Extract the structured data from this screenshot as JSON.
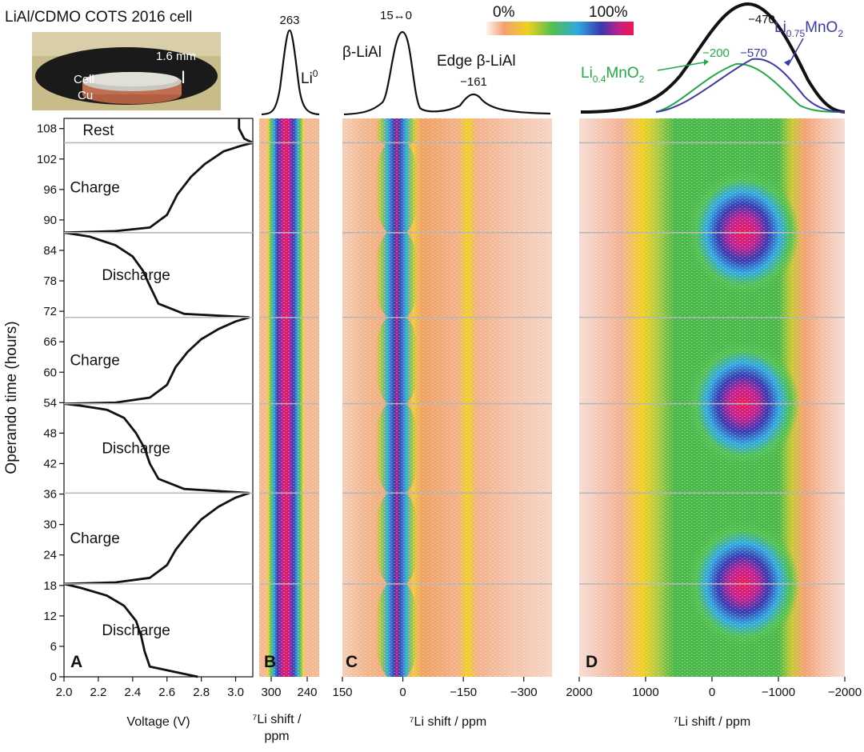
{
  "title": "LiAl/CDMO COTS 2016 cell",
  "photo": {
    "thickness": "1.6 mm",
    "label_cell": "Cell",
    "label_cu": "Cu"
  },
  "colorbar": {
    "min_label": "0%",
    "max_label": "100%"
  },
  "panels": {
    "A": {
      "letter": "A",
      "xlabel": "Voltage (V)",
      "ylabel": "Operando time (hours)"
    },
    "B": {
      "letter": "B",
      "xlabel_line1": "⁷Li shift /",
      "xlabel_line2": "ppm",
      "peak_label": "263",
      "species": "Li",
      "species_sup": "0"
    },
    "C": {
      "letter": "C",
      "xlabel": "⁷Li shift / ppm",
      "peak_label": "15↔0",
      "species": "β-LiAl",
      "edge_label": "Edge β-LiAl",
      "edge_value": "−161"
    },
    "D": {
      "letter": "D",
      "xlabel": "⁷Li shift / ppm",
      "total_peak": "−470",
      "green_peak": "−200",
      "blue_peak": "−570",
      "blue_species": "Li",
      "blue_sub": "0.75",
      "blue_tail": "MnO",
      "blue_tail_sub": "2",
      "green_species": "Li",
      "green_sub": "0.4",
      "green_tail": "MnO",
      "green_tail_sub": "2"
    }
  },
  "colors": {
    "high": "#e8185f",
    "blue": "#3a3aa8",
    "green": "#22a844",
    "line": "#111111",
    "grid": "#b8b8b8"
  },
  "chart_data": [
    {
      "type": "line",
      "panel": "A",
      "title": "",
      "xlabel": "Voltage (V)",
      "ylabel": "Operando time (hours)",
      "xlim": [
        2.0,
        3.1
      ],
      "ylim": [
        0,
        110
      ],
      "x_ticks": [
        "2.0",
        "2.2",
        "2.4",
        "2.6",
        "2.8",
        "3.0"
      ],
      "y_ticks": [
        "0",
        "6",
        "12",
        "18",
        "24",
        "30",
        "36",
        "42",
        "48",
        "54",
        "60",
        "66",
        "72",
        "78",
        "84",
        "90",
        "96",
        "102",
        "108"
      ],
      "segments": [
        {
          "label": "Discharge",
          "points": [
            [
              2.78,
              0
            ],
            [
              2.5,
              2
            ],
            [
              2.47,
              5
            ],
            [
              2.45,
              8
            ],
            [
              2.42,
              11
            ],
            [
              2.35,
              14
            ],
            [
              2.25,
              16
            ],
            [
              2.1,
              17.5
            ],
            [
              2.0,
              18.3
            ]
          ]
        },
        {
          "label": "Charge",
          "points": [
            [
              2.0,
              18.3
            ],
            [
              2.3,
              18.6
            ],
            [
              2.5,
              19.5
            ],
            [
              2.6,
              22
            ],
            [
              2.65,
              25
            ],
            [
              2.72,
              28
            ],
            [
              2.8,
              31
            ],
            [
              2.9,
              33.5
            ],
            [
              3.0,
              35.3
            ],
            [
              3.08,
              36.2
            ]
          ]
        },
        {
          "label": "Discharge",
          "points": [
            [
              3.08,
              36.2
            ],
            [
              2.7,
              37
            ],
            [
              2.55,
              39
            ],
            [
              2.5,
              42
            ],
            [
              2.47,
              45
            ],
            [
              2.42,
              48
            ],
            [
              2.35,
              51
            ],
            [
              2.25,
              52.6
            ],
            [
              2.1,
              53.4
            ],
            [
              2.0,
              53.8
            ]
          ]
        },
        {
          "label": "Charge",
          "points": [
            [
              2.0,
              53.8
            ],
            [
              2.3,
              54
            ],
            [
              2.5,
              55
            ],
            [
              2.6,
              57.5
            ],
            [
              2.65,
              61
            ],
            [
              2.72,
              64
            ],
            [
              2.8,
              66.5
            ],
            [
              2.9,
              68.5
            ],
            [
              3.0,
              70
            ],
            [
              3.08,
              70.8
            ]
          ]
        },
        {
          "label": "Discharge",
          "points": [
            [
              3.08,
              70.8
            ],
            [
              2.7,
              71.5
            ],
            [
              2.55,
              73.5
            ],
            [
              2.5,
              77
            ],
            [
              2.46,
              80
            ],
            [
              2.4,
              82.8
            ],
            [
              2.3,
              85
            ],
            [
              2.15,
              86.7
            ],
            [
              2.0,
              87.5
            ]
          ]
        },
        {
          "label": "Charge",
          "points": [
            [
              2.0,
              87.5
            ],
            [
              2.3,
              87.8
            ],
            [
              2.5,
              88.5
            ],
            [
              2.6,
              91
            ],
            [
              2.66,
              95
            ],
            [
              2.74,
              98.5
            ],
            [
              2.82,
              101
            ],
            [
              2.93,
              103.5
            ],
            [
              3.03,
              104.6
            ],
            [
              3.1,
              105.2
            ]
          ]
        },
        {
          "label": "Rest",
          "points": [
            [
              3.1,
              105.2
            ],
            [
              3.05,
              106
            ],
            [
              3.02,
              108
            ],
            [
              3.02,
              110
            ]
          ]
        }
      ],
      "regions": [
        {
          "label": "Discharge",
          "t0": 0,
          "t1": 18.3
        },
        {
          "label": "Charge",
          "t0": 18.3,
          "t1": 36.2
        },
        {
          "label": "Discharge",
          "t0": 36.2,
          "t1": 53.8
        },
        {
          "label": "Charge",
          "t0": 53.8,
          "t1": 70.8
        },
        {
          "label": "Discharge",
          "t0": 70.8,
          "t1": 87.5
        },
        {
          "label": "Charge",
          "t0": 87.5,
          "t1": 105.2
        },
        {
          "label": "Rest",
          "t0": 105.2,
          "t1": 110
        }
      ],
      "boundaries_hours": [
        18.3,
        36.2,
        53.8,
        70.8,
        87.5,
        105.2
      ]
    },
    {
      "type": "heatmap",
      "panel": "B",
      "xlabel": "⁷Li shift / ppm",
      "xlim": [
        320,
        220
      ],
      "x_ticks": [
        "300",
        "240"
      ],
      "top_spectrum_peak_ppm": 263,
      "top_spectrum_label": "Li⁰",
      "description": "constant band centred at ~263 ppm over 0–110 h"
    },
    {
      "type": "heatmap",
      "panel": "C",
      "xlabel": "⁷Li shift / ppm",
      "xlim": [
        150,
        -370
      ],
      "x_ticks": [
        "150",
        "0",
        "−150",
        "−300"
      ],
      "peaks_ppm": [
        {
          "label": "β-LiAl",
          "value": 7,
          "range": "15↔0"
        },
        {
          "label": "Edge β-LiAl",
          "value": -161
        }
      ]
    },
    {
      "type": "heatmap",
      "panel": "D",
      "xlabel": "⁷Li shift / ppm",
      "xlim": [
        2000,
        -2000
      ],
      "x_ticks": [
        "2000",
        "1000",
        "0",
        "−1000",
        "−2000"
      ],
      "peaks_ppm": [
        {
          "label": "total",
          "value": -470
        },
        {
          "label": "Li0.4MnO2",
          "value": -200
        },
        {
          "label": "Li0.75MnO2",
          "value": -570
        }
      ],
      "intensity_maxima_hours": [
        18.3,
        53.8,
        87.5
      ]
    }
  ]
}
